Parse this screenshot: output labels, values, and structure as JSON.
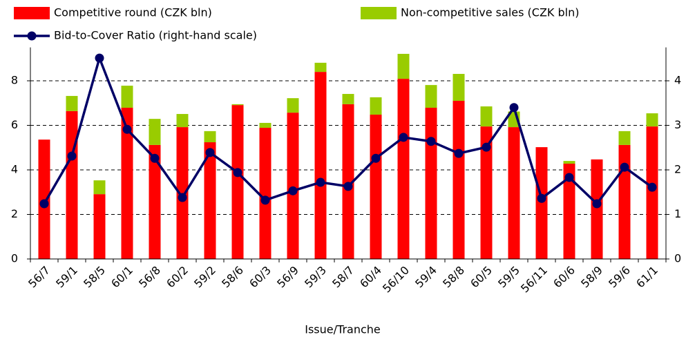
{
  "chart_data": {
    "type": "bar",
    "x_label": "Issue/Tranche",
    "categories": [
      "56/7",
      "59/1",
      "58/5",
      "60/1",
      "56/8",
      "60/2",
      "59/2",
      "58/6",
      "60/3",
      "56/9",
      "59/3",
      "58/7",
      "60/4",
      "56/10",
      "59/4",
      "58/8",
      "60/5",
      "59/5",
      "56/11",
      "60/6",
      "58/9",
      "59/6",
      "61/1"
    ],
    "series": [
      {
        "name": "Competitive round (CZK bln)",
        "color": "#ff0000",
        "stacked": true,
        "values": [
          5.36,
          6.64,
          2.91,
          6.79,
          5.12,
          5.92,
          5.24,
          6.91,
          5.89,
          6.57,
          8.4,
          6.95,
          6.48,
          8.09,
          6.79,
          7.1,
          5.95,
          5.92,
          5.02,
          4.28,
          4.47,
          5.12,
          5.95
        ]
      },
      {
        "name": "Non-competitive sales (CZK bln)",
        "color": "#99cc00",
        "stacked": true,
        "values": [
          0,
          0.68,
          0.62,
          0.99,
          1.17,
          0.59,
          0.5,
          0.04,
          0.22,
          0.65,
          0.41,
          0.46,
          0.78,
          1.12,
          1.02,
          1.21,
          0.9,
          0.7,
          0,
          0.12,
          0,
          0.62,
          0.59
        ]
      },
      {
        "name": "Bid-to-Cover Ratio (right-hand scale)",
        "color": "#000066",
        "type": "line",
        "axis": "y2",
        "values": [
          1.24,
          2.31,
          4.51,
          2.91,
          2.26,
          1.38,
          2.39,
          1.94,
          1.32,
          1.53,
          1.72,
          1.63,
          2.26,
          2.73,
          2.64,
          2.37,
          2.51,
          3.4,
          1.36,
          1.83,
          1.24,
          2.06,
          1.61
        ]
      }
    ],
    "ylim": [
      0,
      9.5
    ],
    "yticks": [
      0,
      2,
      4,
      6,
      8
    ],
    "y2lim": [
      0,
      4.75
    ],
    "y2ticks": [
      0,
      1,
      2,
      3,
      4
    ],
    "grid": true
  }
}
